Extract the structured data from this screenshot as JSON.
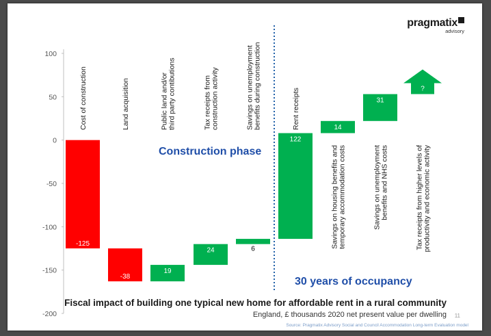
{
  "logo": {
    "name": "pragmatix",
    "sub": "advisory"
  },
  "phase_labels": {
    "construction": "Construction phase",
    "occupancy": "30 years of occupancy"
  },
  "caption": {
    "title": "Fiscal impact of building one typical new home for affordable rent in a rural community",
    "subtitle": "England, £ thousands 2020 net present value per dwelling",
    "source": "Source: Pragmatix Advisory Social and Council Accommodation Long-term Evaluation model",
    "page": "11"
  },
  "colors": {
    "negative": "#ff0000",
    "positive": "#00b050",
    "phase_text": "#1f4ea8",
    "divider": "#1f5fa8"
  },
  "chart_data": {
    "type": "bar",
    "subtype": "waterfall",
    "title": "Fiscal impact of building one typical new home for affordable rent in a rural community",
    "ylim": [
      -200,
      100
    ],
    "yticks": [
      -200,
      -150,
      -100,
      -50,
      0,
      50,
      100
    ],
    "grid": false,
    "categories": [
      {
        "label": [
          "Cost of construction"
        ],
        "start": 0,
        "end": -125,
        "data_label": "-125",
        "label_side": "top",
        "phase": "construction"
      },
      {
        "label": [
          "Land acquisition"
        ],
        "start": -125,
        "end": -163,
        "data_label": "-38",
        "label_side": "top",
        "phase": "construction"
      },
      {
        "label": [
          "Public land and/or",
          "third party contibutions"
        ],
        "start": -163,
        "end": -144,
        "data_label": "19",
        "label_side": "top",
        "phase": "construction"
      },
      {
        "label": [
          "Tax receipts from",
          "construction activity"
        ],
        "start": -144,
        "end": -120,
        "data_label": "24",
        "label_side": "top",
        "phase": "construction"
      },
      {
        "label": [
          "Savings on unemployment",
          "benefits during construction"
        ],
        "start": -120,
        "end": -114,
        "data_label": "6",
        "label_side": "top",
        "phase": "construction"
      },
      {
        "label": [
          "Rent receipts"
        ],
        "start": -114,
        "end": 8,
        "data_label": "122",
        "label_side": "top",
        "phase": "occupancy"
      },
      {
        "label": [
          "Savings on housing benefits and",
          "temporary accommodation costs"
        ],
        "start": 8,
        "end": 22,
        "data_label": "14",
        "label_side": "bottom",
        "phase": "occupancy"
      },
      {
        "label": [
          "Savings on unemployment",
          "benefits and NHS costs"
        ],
        "start": 22,
        "end": 53,
        "data_label": "31",
        "label_side": "bottom",
        "phase": "occupancy"
      },
      {
        "label": [
          "Tax receipts from higher levels of",
          "productivity and economic activity"
        ],
        "start": 53,
        "end": null,
        "data_label": "?",
        "label_side": "bottom",
        "phase": "occupancy",
        "shape": "arrow-up"
      }
    ]
  }
}
